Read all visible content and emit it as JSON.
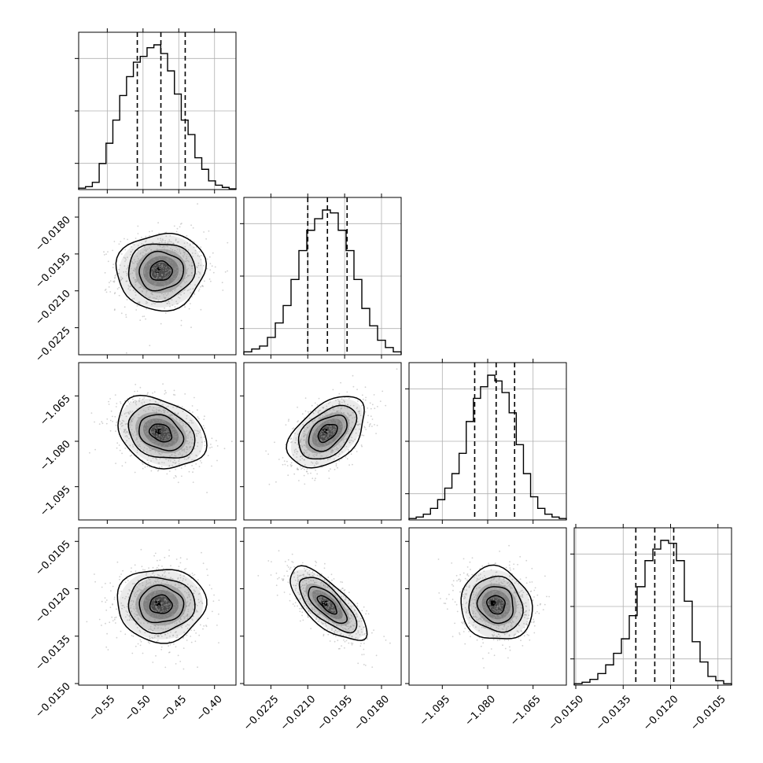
{
  "chart_data": {
    "type": "corner",
    "parameters": [
      {
        "index": 0,
        "range": [
          -0.59,
          -0.37
        ],
        "ticks": [
          -0.55,
          -0.5,
          -0.45,
          -0.4
        ],
        "tick_labels": [
          "−0.55",
          "−0.50",
          "−0.45",
          "−0.40"
        ],
        "quantiles": [
          -0.508,
          -0.475,
          -0.441
        ],
        "hist_counts": [
          0.01,
          0.02,
          0.05,
          0.18,
          0.32,
          0.48,
          0.65,
          0.78,
          0.88,
          0.92,
          0.98,
          1.0,
          0.94,
          0.82,
          0.66,
          0.48,
          0.38,
          0.22,
          0.14,
          0.06,
          0.03,
          0.015,
          0.005
        ]
      },
      {
        "index": 1,
        "range": [
          -0.0236,
          -0.0172
        ],
        "ticks": [
          -0.0225,
          -0.021,
          -0.0195,
          -0.018
        ],
        "tick_labels": [
          "−0.0225",
          "−0.0210",
          "−0.0195",
          "−0.0180"
        ],
        "quantiles": [
          -0.021,
          -0.0202,
          -0.0194
        ],
        "hist_counts": [
          0.02,
          0.04,
          0.06,
          0.12,
          0.22,
          0.34,
          0.52,
          0.72,
          0.86,
          0.94,
          1.0,
          0.98,
          0.86,
          0.72,
          0.52,
          0.32,
          0.2,
          0.1,
          0.05,
          0.02
        ]
      },
      {
        "index": 2,
        "range": [
          -1.106,
          -1.054
        ],
        "ticks": [
          -1.095,
          -1.08,
          -1.065
        ],
        "tick_labels": [
          "−1.095",
          "−1.080",
          "−1.065"
        ],
        "quantiles": [
          -1.0843,
          -1.0772,
          -1.0711
        ],
        "hist_counts": [
          0.01,
          0.02,
          0.04,
          0.08,
          0.14,
          0.22,
          0.32,
          0.46,
          0.68,
          0.84,
          0.92,
          1.0,
          0.96,
          0.88,
          0.74,
          0.52,
          0.32,
          0.16,
          0.08,
          0.04,
          0.02,
          0.01
        ]
      },
      {
        "index": 3,
        "range": [
          -0.01505,
          -0.01007
        ],
        "ticks": [
          -0.015,
          -0.0135,
          -0.012,
          -0.0105
        ],
        "tick_labels": [
          "−0.0150",
          "−0.0135",
          "−0.0120",
          "−0.0105"
        ],
        "quantiles": [
          -0.0131,
          -0.0125,
          -0.0119
        ],
        "hist_counts": [
          0.01,
          0.02,
          0.04,
          0.08,
          0.14,
          0.22,
          0.32,
          0.48,
          0.68,
          0.86,
          0.94,
          1.0,
          0.98,
          0.86,
          0.58,
          0.3,
          0.16,
          0.06,
          0.03,
          0.01
        ]
      }
    ],
    "pairs": [
      {
        "x": 0,
        "y": 1,
        "mean": [
          -0.475,
          -0.0202
        ],
        "sd": [
          0.031,
          0.00078
        ],
        "rho": 0.05
      },
      {
        "x": 0,
        "y": 2,
        "mean": [
          -0.475,
          -1.0772
        ],
        "sd": [
          0.031,
          0.0059
        ],
        "rho": -0.28
      },
      {
        "x": 1,
        "y": 2,
        "mean": [
          -0.0202,
          -1.0772
        ],
        "sd": [
          0.00078,
          0.0059
        ],
        "rho": 0.45
      },
      {
        "x": 0,
        "y": 3,
        "mean": [
          -0.475,
          -0.0125
        ],
        "sd": [
          0.031,
          0.00058
        ],
        "rho": 0.0
      },
      {
        "x": 1,
        "y": 3,
        "mean": [
          -0.0202,
          -0.0125
        ],
        "sd": [
          0.00078,
          0.00058
        ],
        "rho": -0.72
      },
      {
        "x": 2,
        "y": 3,
        "mean": [
          -1.0772,
          -0.0125
        ],
        "sd": [
          0.0059,
          0.00058
        ],
        "rho": -0.1
      }
    ],
    "contour_levels": [
      0.5,
      1.0,
      1.5,
      2.0
    ],
    "grid": true,
    "colors": {
      "axes": "#000000",
      "grid": "#b0b0b0",
      "points": "#9a9a9a",
      "hist": "#000000"
    }
  }
}
